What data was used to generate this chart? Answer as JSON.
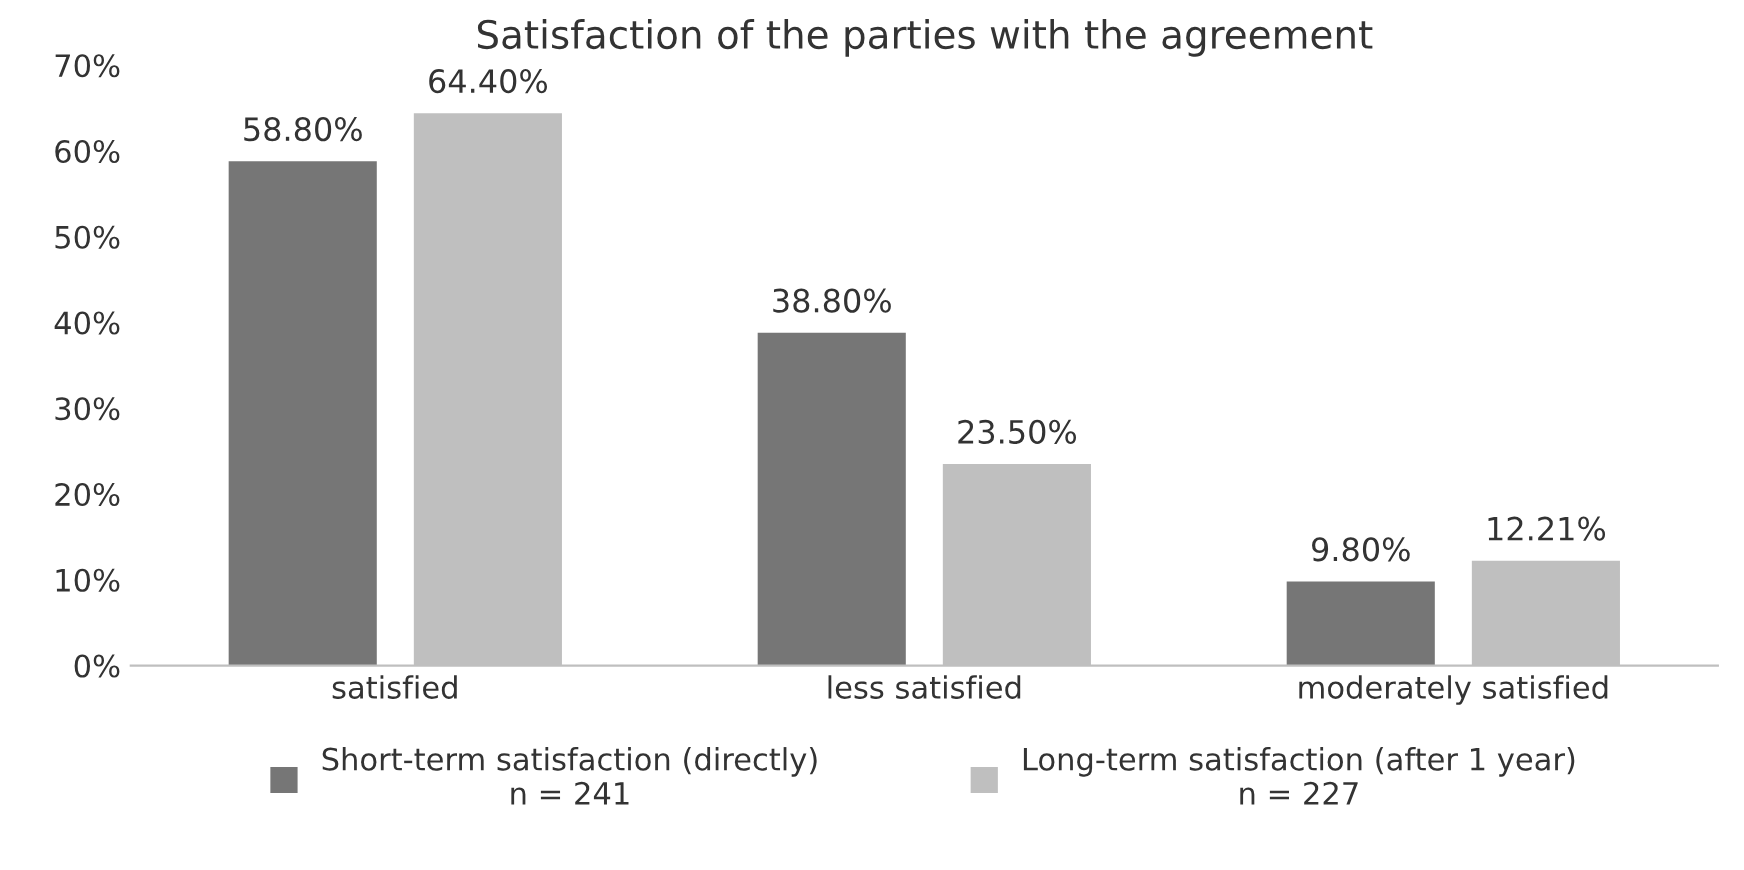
{
  "chart_data": {
    "type": "bar",
    "title": "Satisfaction of the parties with the agreement",
    "categories": [
      "satisfied",
      "less satisfied",
      "moderately satisfied"
    ],
    "series": [
      {
        "name": "Short-term satisfaction (directly)\nn = 241",
        "color": "#767676",
        "values": [
          58.8,
          38.8,
          9.8
        ],
        "value_labels": [
          "58.80%",
          "38.80%",
          "9.80%"
        ]
      },
      {
        "name": "Long-term satisfaction (after 1 year)\nn = 227",
        "color": "#bfbfbf",
        "values": [
          64.4,
          23.5,
          12.21
        ],
        "value_labels": [
          "64.40%",
          "23.50%",
          "12.21%"
        ]
      }
    ],
    "ylim": [
      0,
      70
    ],
    "yticks": [
      {
        "value": 0,
        "label": "0%"
      },
      {
        "value": 10,
        "label": "10%"
      },
      {
        "value": 20,
        "label": "20%"
      },
      {
        "value": 30,
        "label": "30%"
      },
      {
        "value": 40,
        "label": "40%"
      },
      {
        "value": 50,
        "label": "50%"
      },
      {
        "value": 60,
        "label": "60%"
      },
      {
        "value": 70,
        "label": "70%"
      }
    ],
    "grid": false,
    "legend": "bottom"
  }
}
